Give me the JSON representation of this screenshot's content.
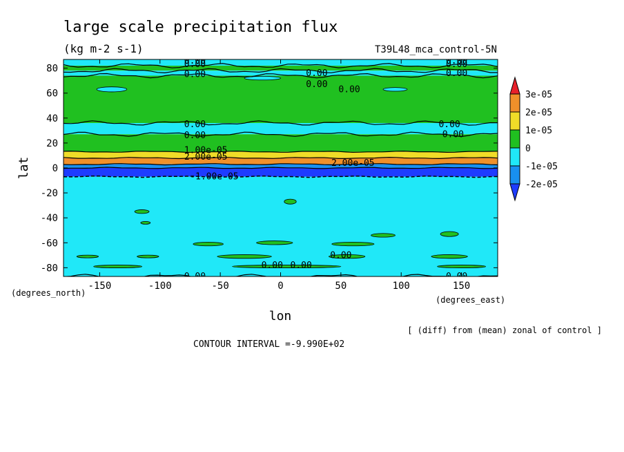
{
  "chart_data": {
    "type": "heatmap",
    "title": "large scale precipitation flux",
    "units": "(kg m-2 s-1)",
    "run_label": "T39L48_mca_control-5N",
    "xlabel": "lon",
    "ylabel": "lat",
    "x_unit_label": "(degrees_east)",
    "y_unit_label": "(degrees_north)",
    "xlim": [
      -180,
      180
    ],
    "ylim": [
      -87,
      87
    ],
    "x_ticks": [
      -150,
      -100,
      -50,
      0,
      50,
      100,
      150
    ],
    "x_tick_labels": [
      "-150",
      "-100",
      "-50",
      "0",
      "50",
      "100",
      "150"
    ],
    "y_ticks": [
      -80,
      -60,
      -40,
      -20,
      0,
      20,
      40,
      60,
      80
    ],
    "y_tick_labels": [
      "-80",
      "-60",
      "-40",
      "-20",
      "0",
      "20",
      "40",
      "60",
      "80"
    ],
    "legend": {
      "placement": "right",
      "labels": [
        "3e-05",
        "2e-05",
        "1e-05",
        "0",
        "-1e-05",
        "-2e-05"
      ],
      "colors": [
        "#e8202a",
        "#f0902a",
        "#f0dc28",
        "#20c020",
        "#20e8f8",
        "#1890f0",
        "#1e3cff"
      ]
    },
    "colors": {
      "above_3e-05": "#e8202a",
      "2e-05_to_3e-05": "#f0902a",
      "1e-05_to_2e-05": "#f0dc28",
      "0_to_1e-05": "#20c020",
      "-1e-05_to_0": "#20e8f8",
      "-2e-05_to_-1e-05": "#1890f0",
      "below_-2e-05": "#1e3cff"
    },
    "latitude_bands": [
      {
        "lat_from": 82,
        "lat_to": 87,
        "color": "#20e8f8"
      },
      {
        "lat_from": 78,
        "lat_to": 82,
        "color": "#20c020"
      },
      {
        "lat_from": 74,
        "lat_to": 78,
        "color": "#20e8f8"
      },
      {
        "lat_from": 36,
        "lat_to": 74,
        "color": "#20c020"
      },
      {
        "lat_from": 27,
        "lat_to": 36,
        "color": "#20e8f8"
      },
      {
        "lat_from": 13,
        "lat_to": 27,
        "color": "#20c020"
      },
      {
        "lat_from": 8,
        "lat_to": 13,
        "color": "#f0dc28"
      },
      {
        "lat_from": 3,
        "lat_to": 8,
        "color": "#f0902a"
      },
      {
        "lat_from": 0,
        "lat_to": 3,
        "color": "#1890f0"
      },
      {
        "lat_from": -7,
        "lat_to": 0,
        "color": "#1e3cff"
      },
      {
        "lat_from": -87,
        "lat_to": -7,
        "color": "#20e8f8"
      }
    ],
    "patches": [
      {
        "lon": -115,
        "lat": -35,
        "w": 12,
        "h": 3,
        "color": "#20c020"
      },
      {
        "lon": -112,
        "lat": -44,
        "w": 8,
        "h": 2,
        "color": "#20c020"
      },
      {
        "lon": 8,
        "lat": -27,
        "w": 10,
        "h": 4,
        "color": "#20c020"
      },
      {
        "lon": 85,
        "lat": -54,
        "w": 20,
        "h": 3,
        "color": "#20c020"
      },
      {
        "lon": 140,
        "lat": -53,
        "w": 15,
        "h": 4,
        "color": "#20c020"
      },
      {
        "lon": -60,
        "lat": -61,
        "w": 25,
        "h": 3,
        "color": "#20c020"
      },
      {
        "lon": -5,
        "lat": -60,
        "w": 30,
        "h": 3,
        "color": "#20c020"
      },
      {
        "lon": 60,
        "lat": -61,
        "w": 35,
        "h": 3,
        "color": "#20c020"
      },
      {
        "lon": -160,
        "lat": -71,
        "w": 18,
        "h": 2,
        "color": "#20c020"
      },
      {
        "lon": -110,
        "lat": -71,
        "w": 18,
        "h": 2,
        "color": "#20c020"
      },
      {
        "lon": -30,
        "lat": -71,
        "w": 45,
        "h": 3,
        "color": "#20c020"
      },
      {
        "lon": 55,
        "lat": -71,
        "w": 30,
        "h": 3,
        "color": "#20c020"
      },
      {
        "lon": 140,
        "lat": -71,
        "w": 30,
        "h": 3,
        "color": "#20c020"
      },
      {
        "lon": -135,
        "lat": -79,
        "w": 40,
        "h": 2,
        "color": "#20c020"
      },
      {
        "lon": 5,
        "lat": -79,
        "w": 90,
        "h": 2,
        "color": "#20c020"
      },
      {
        "lon": 150,
        "lat": -79,
        "w": 40,
        "h": 2,
        "color": "#20c020"
      },
      {
        "lon": -140,
        "lat": 63,
        "w": 25,
        "h": 4,
        "color": "#20e8f8"
      },
      {
        "lon": -15,
        "lat": 72,
        "w": 30,
        "h": 3,
        "color": "#20e8f8"
      },
      {
        "lon": 95,
        "lat": 63,
        "w": 20,
        "h": 3,
        "color": "#20e8f8"
      }
    ],
    "contours": [
      {
        "label": "0.00",
        "lon": -71,
        "lat": 86
      },
      {
        "label": "0.00",
        "lon": -71,
        "lat": 83
      },
      {
        "label": "0.00",
        "lon": -71,
        "lat": 75
      },
      {
        "label": "0.00",
        "lon": 146,
        "lat": 86
      },
      {
        "label": "0.00",
        "lon": 146,
        "lat": 83
      },
      {
        "label": "0.00",
        "lon": 146,
        "lat": 76
      },
      {
        "label": "0.00",
        "lon": 30,
        "lat": 76
      },
      {
        "label": "0.00",
        "lon": 30,
        "lat": 67
      },
      {
        "label": "0.00",
        "lon": 57,
        "lat": 63
      },
      {
        "label": "0.00",
        "lon": -71,
        "lat": 35
      },
      {
        "label": "0.00",
        "lon": -71,
        "lat": 26
      },
      {
        "label": "0.00",
        "lon": 140,
        "lat": 35
      },
      {
        "label": "0.00",
        "lon": 143,
        "lat": 27
      },
      {
        "label": "1.00e-05",
        "lon": -62,
        "lat": 14
      },
      {
        "label": "2.00e-05",
        "lon": -62,
        "lat": 9
      },
      {
        "label": "2.00e-05",
        "lon": 60,
        "lat": 4
      },
      {
        "label": "-1.00e-05",
        "lon": -55,
        "lat": -7
      },
      {
        "label": "0.00",
        "lon": 50,
        "lat": -70
      },
      {
        "label": "0.00",
        "lon": -7,
        "lat": -78
      },
      {
        "label": "0.00",
        "lon": 17,
        "lat": -78
      },
      {
        "label": "0.00",
        "lon": -71,
        "lat": -87
      },
      {
        "label": "0.00",
        "lon": 146,
        "lat": -87
      }
    ]
  },
  "footer": {
    "diff_note": "[ (diff) from (mean) zonal of control ]",
    "contour_interval": "CONTOUR INTERVAL =-9.990E+02"
  }
}
